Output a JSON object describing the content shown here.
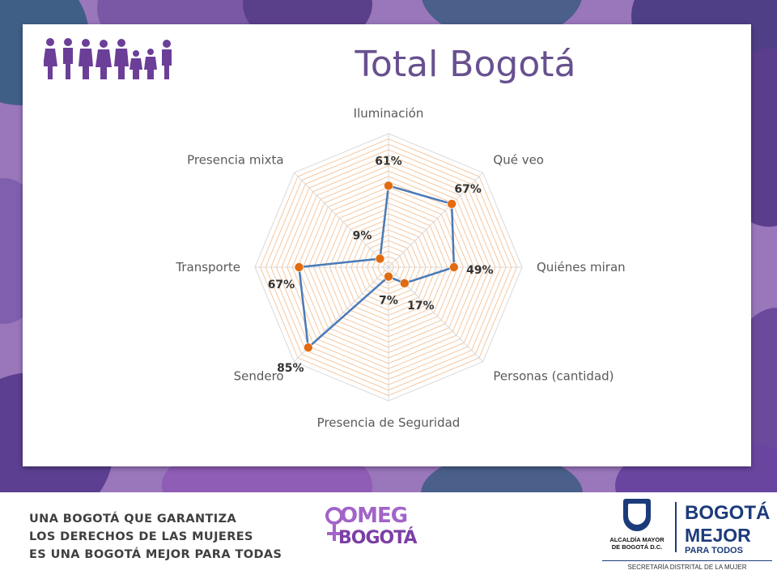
{
  "slide": {
    "title": "Total Bogotá",
    "colors": {
      "background": "#9a76bb",
      "title": "#68518f",
      "series_line": "#4a7ab8",
      "marker": "#e26b10",
      "grid": "#f6c79f"
    }
  },
  "chart_data": {
    "type": "radar",
    "categories": [
      "Iluminación",
      "Qué veo",
      "Quiénes miran",
      "Personas (cantidad)",
      "Presencia de Seguridad",
      "Sendero",
      "Transporte",
      "Presencia mixta"
    ],
    "series": [
      {
        "values": [
          61,
          67,
          49,
          17,
          7,
          85,
          67,
          9
        ]
      }
    ],
    "data_labels": [
      "61%",
      "67%",
      "49%",
      "17%",
      "7%",
      "85%",
      "67%",
      "9%"
    ],
    "value_unit": "%",
    "rlim": [
      0,
      100
    ],
    "grid": true,
    "legend": "none"
  },
  "footer": {
    "slogan": [
      "UNA BOGOTÁ QUE GARANTIZA",
      "LOS DERECHOS DE LAS MUJERES",
      "ES UNA BOGOTÁ MEJOR PARA TODAS"
    ],
    "omeg_top": "OMEG",
    "omeg_bottom": "BOGOTÁ",
    "alcaldia": [
      "ALCALDÍA MAYOR",
      "DE BOGOTÁ D.C."
    ],
    "bogota_logo": [
      "BOGOTÁ",
      "MEJOR",
      "PARA TODOS"
    ],
    "secretaria": "SECRETARÍA DISTRITAL DE LA MUJER"
  }
}
